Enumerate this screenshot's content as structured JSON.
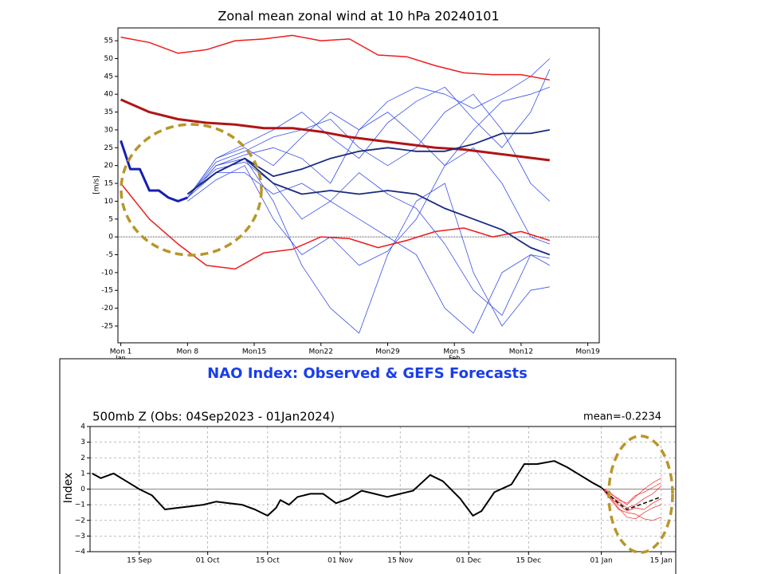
{
  "chart_data": [
    {
      "type": "line",
      "title": "Zonal mean zonal wind at 10 hPa 20240101",
      "y_label": "[m/s]",
      "xlim": [
        -0.3,
        50.2
      ],
      "ylim": [
        -29.7,
        58.6
      ],
      "xticks": [
        {
          "value": 0,
          "label": "Mon 1"
        },
        {
          "value": 7,
          "label": "Mon 8"
        },
        {
          "value": 14,
          "label": "Mon15"
        },
        {
          "value": 21,
          "label": "Mon22"
        },
        {
          "value": 28,
          "label": "Mon29"
        },
        {
          "value": 35,
          "label": "Mon 5"
        },
        {
          "value": 42,
          "label": "Mon12"
        },
        {
          "value": 49,
          "label": "Mon19"
        }
      ],
      "month_labels": [
        {
          "value": 0,
          "label": "Jan"
        },
        {
          "value": 35,
          "label": "Feb"
        }
      ],
      "yticks": [
        -25,
        -20,
        -15,
        -10,
        -5,
        0,
        5,
        10,
        15,
        20,
        25,
        30,
        35,
        40,
        45,
        50,
        55
      ],
      "zero_line": true,
      "grid": false,
      "series": [
        {
          "color": "#3a50e8",
          "linewidth": 0.8,
          "x": [
            7,
            10,
            13,
            16,
            19,
            22,
            25,
            28,
            31,
            34,
            37,
            40,
            43,
            45
          ],
          "values": [
            11,
            20,
            22,
            10,
            -8,
            -20,
            -27,
            -5,
            10,
            15,
            -10,
            -25,
            -15,
            -14
          ]
        },
        {
          "color": "#3a50e8",
          "linewidth": 0.8,
          "x": [
            7,
            10,
            13,
            16,
            19,
            22,
            25,
            28,
            31,
            34,
            37,
            40,
            43,
            45
          ],
          "values": [
            11,
            22,
            25,
            20,
            28,
            35,
            30,
            38,
            42,
            40,
            36,
            40,
            45,
            50
          ]
        },
        {
          "color": "#3a50e8",
          "linewidth": 0.8,
          "x": [
            7,
            10,
            13,
            16,
            19,
            22,
            25,
            28,
            31,
            34,
            37,
            40,
            43,
            45
          ],
          "values": [
            11,
            18,
            18,
            12,
            15,
            10,
            5,
            0,
            -5,
            -20,
            -27,
            -10,
            -5,
            -6
          ]
        },
        {
          "color": "#3a50e8",
          "linewidth": 0.8,
          "x": [
            7,
            10,
            13,
            16,
            19,
            22,
            25,
            28,
            31,
            34,
            37,
            40,
            43,
            45
          ],
          "values": [
            11,
            21,
            24,
            28,
            30,
            33,
            25,
            20,
            25,
            35,
            40,
            30,
            15,
            10
          ]
        },
        {
          "color": "#3a50e8",
          "linewidth": 0.8,
          "x": [
            7,
            10,
            13,
            16,
            19,
            22,
            25,
            28,
            31,
            34,
            37,
            40,
            43,
            45
          ],
          "values": [
            10,
            16,
            20,
            5,
            -5,
            0,
            -8,
            -4,
            5,
            20,
            25,
            15,
            0,
            -2
          ]
        },
        {
          "color": "#3a50e8",
          "linewidth": 0.8,
          "x": [
            7,
            10,
            13,
            16,
            19,
            22,
            25,
            28,
            31,
            34,
            37,
            40,
            43,
            45
          ],
          "values": [
            11,
            20,
            23,
            25,
            22,
            15,
            30,
            35,
            28,
            20,
            30,
            38,
            40,
            42
          ]
        },
        {
          "color": "#3a50e8",
          "linewidth": 0.8,
          "x": [
            7,
            10,
            13,
            16,
            19,
            22,
            25,
            28,
            31,
            34,
            37,
            40,
            43,
            45
          ],
          "values": [
            12,
            19,
            21,
            15,
            5,
            10,
            18,
            12,
            8,
            -2,
            -15,
            -22,
            -5,
            -8
          ]
        },
        {
          "color": "#3a50e8",
          "linewidth": 0.8,
          "x": [
            7,
            10,
            13,
            16,
            19,
            22,
            25,
            28,
            31,
            34,
            37,
            40,
            43,
            45
          ],
          "values": [
            11,
            22,
            26,
            30,
            35,
            28,
            22,
            32,
            38,
            42,
            33,
            25,
            35,
            47
          ]
        },
        {
          "color": "#ee1c1c",
          "linewidth": 1.5,
          "x": [
            0,
            3,
            6,
            9,
            12,
            15,
            18,
            21,
            24,
            27,
            30,
            33,
            36,
            39,
            42,
            45
          ],
          "values": [
            56,
            54.5,
            51.5,
            52.5,
            55,
            55.5,
            56.5,
            55,
            55.5,
            51,
            50.5,
            48,
            46,
            45.5,
            45.5,
            44
          ]
        },
        {
          "color": "#ee1c1c",
          "linewidth": 1.5,
          "x": [
            0,
            3,
            6,
            9,
            12,
            15,
            18,
            21,
            24,
            27,
            30,
            33,
            36,
            39,
            42,
            45
          ],
          "values": [
            15,
            5,
            -2,
            -8,
            -9,
            -4.5,
            -3.5,
            0,
            -0.5,
            -3,
            -1,
            1.5,
            2.5,
            0,
            1.5,
            -1
          ]
        },
        {
          "color": "#b01515",
          "linewidth": 3,
          "x": [
            0,
            3,
            6,
            9,
            12,
            15,
            18,
            21,
            24,
            27,
            30,
            33,
            36,
            39,
            42,
            45
          ],
          "values": [
            38.5,
            35,
            33,
            32,
            31.5,
            30.5,
            30.5,
            29.5,
            28,
            27,
            26,
            25,
            24.5,
            23.5,
            22.5,
            21.5
          ]
        },
        {
          "color": "#1a2a80",
          "linewidth": 1.8,
          "x": [
            7,
            10,
            13,
            16,
            19,
            22,
            25,
            28,
            31,
            34,
            37,
            40,
            43,
            45
          ],
          "values": [
            12,
            18,
            22,
            15,
            12,
            13,
            12,
            13,
            12,
            8,
            5,
            2,
            -3,
            -5
          ]
        },
        {
          "color": "#1a2a80",
          "linewidth": 1.8,
          "x": [
            7,
            10,
            13,
            16,
            19,
            22,
            25,
            28,
            31,
            34,
            37,
            40,
            43,
            45
          ],
          "values": [
            12,
            18,
            22,
            17,
            19,
            22,
            24,
            25,
            24,
            24,
            26,
            29,
            29,
            30
          ]
        },
        {
          "color": "#1420b0",
          "linewidth": 3,
          "x": [
            0,
            1,
            2,
            3,
            4,
            5,
            6,
            7
          ],
          "values": [
            27,
            19,
            19,
            13,
            13,
            11,
            10,
            11
          ]
        }
      ]
    },
    {
      "type": "line",
      "title": "NAO Index: Observed & GEFS Forecasts",
      "subtitle": "500mb Z (Obs: 04Sep2023 - 01Jan2024)",
      "annotation": "mean=-0.2234",
      "y_label": "Index",
      "xlim": [
        -0.5,
        136.4
      ],
      "ylim": [
        -4,
        4
      ],
      "xticks": [
        {
          "value": 11,
          "label": "15 Sep"
        },
        {
          "value": 27,
          "label": "01 Oct"
        },
        {
          "value": 41,
          "label": "15 Oct"
        },
        {
          "value": 58,
          "label": "01 Nov"
        },
        {
          "value": 72,
          "label": "15 Nov"
        },
        {
          "value": 88,
          "label": "01 Dec"
        },
        {
          "value": 102,
          "label": "15 Dec"
        },
        {
          "value": 119,
          "label": "01 Jan"
        },
        {
          "value": 133,
          "label": "15 Jan"
        }
      ],
      "yticks": [
        {
          "value": -4,
          "label": "−4"
        },
        {
          "value": -3,
          "label": "−3"
        },
        {
          "value": -2,
          "label": "−2"
        },
        {
          "value": -1,
          "label": "−1"
        },
        0,
        1,
        2,
        3,
        4
      ],
      "zero_line": true,
      "grid": true,
      "series": [
        {
          "color": "#ee2222",
          "linewidth": 0.7,
          "x": [
            119,
            121,
            123,
            125,
            127,
            129,
            131,
            133
          ],
          "values": [
            0.1,
            -0.3,
            -0.6,
            -1.0,
            -0.5,
            0,
            0.4,
            0.7
          ]
        },
        {
          "color": "#ee2222",
          "linewidth": 0.7,
          "x": [
            119,
            121,
            123,
            125,
            127,
            129,
            131,
            133
          ],
          "values": [
            0.1,
            -0.5,
            -1.2,
            -1.8,
            -1.9,
            -1.5,
            -1.2,
            -1.0
          ]
        },
        {
          "color": "#ee2222",
          "linewidth": 0.7,
          "x": [
            119,
            121,
            123,
            125,
            127,
            129,
            131,
            133
          ],
          "values": [
            0.1,
            -0.4,
            -0.8,
            -1.2,
            -1.0,
            -0.6,
            -0.3,
            0.2
          ]
        },
        {
          "color": "#ee2222",
          "linewidth": 0.7,
          "x": [
            119,
            121,
            123,
            125,
            127,
            129,
            131,
            133
          ],
          "values": [
            0.1,
            -0.6,
            -1.3,
            -1.5,
            -1.6,
            -1.9,
            -2.0,
            -1.8
          ]
        },
        {
          "color": "#ee2222",
          "linewidth": 0.7,
          "x": [
            119,
            121,
            123,
            125,
            127,
            129,
            131,
            133
          ],
          "values": [
            0.1,
            -0.2,
            -0.7,
            -0.9,
            -0.4,
            -0.2,
            0.1,
            0.4
          ]
        },
        {
          "color": "#ee2222",
          "linewidth": 0.7,
          "x": [
            119,
            121,
            123,
            125,
            127,
            129,
            131,
            133
          ],
          "values": [
            0.1,
            -0.5,
            -1.0,
            -1.4,
            -1.2,
            -1.3,
            -0.9,
            -0.6
          ]
        },
        {
          "color": "#000000",
          "linewidth": 1.5,
          "dashed": true,
          "x": [
            119,
            121,
            123,
            125,
            127,
            129,
            131,
            133
          ],
          "values": [
            0.1,
            -0.4,
            -0.9,
            -1.3,
            -1.1,
            -0.9,
            -0.7,
            -0.5
          ]
        },
        {
          "color": "#000000",
          "linewidth": 2,
          "x": [
            0,
            2,
            5,
            8,
            11,
            14,
            17,
            20,
            23,
            26,
            29,
            32,
            35,
            38,
            41,
            43,
            44,
            46,
            48,
            51,
            54,
            57,
            60,
            63,
            66,
            69,
            72,
            75,
            79,
            82,
            86,
            89,
            91,
            94,
            98,
            101,
            104,
            108,
            111,
            114,
            117,
            119
          ],
          "values": [
            1.0,
            0.7,
            1.0,
            0.5,
            0.0,
            -0.4,
            -1.3,
            -1.2,
            -1.1,
            -1.0,
            -0.8,
            -0.9,
            -1.0,
            -1.3,
            -1.7,
            -1.2,
            -0.7,
            -1.0,
            -0.5,
            -0.3,
            -0.3,
            -0.9,
            -0.6,
            -0.1,
            -0.3,
            -0.5,
            -0.3,
            -0.1,
            0.9,
            0.5,
            -0.6,
            -1.7,
            -1.4,
            -0.2,
            0.3,
            1.6,
            1.6,
            1.8,
            1.4,
            0.9,
            0.4,
            0.1
          ]
        }
      ]
    }
  ]
}
